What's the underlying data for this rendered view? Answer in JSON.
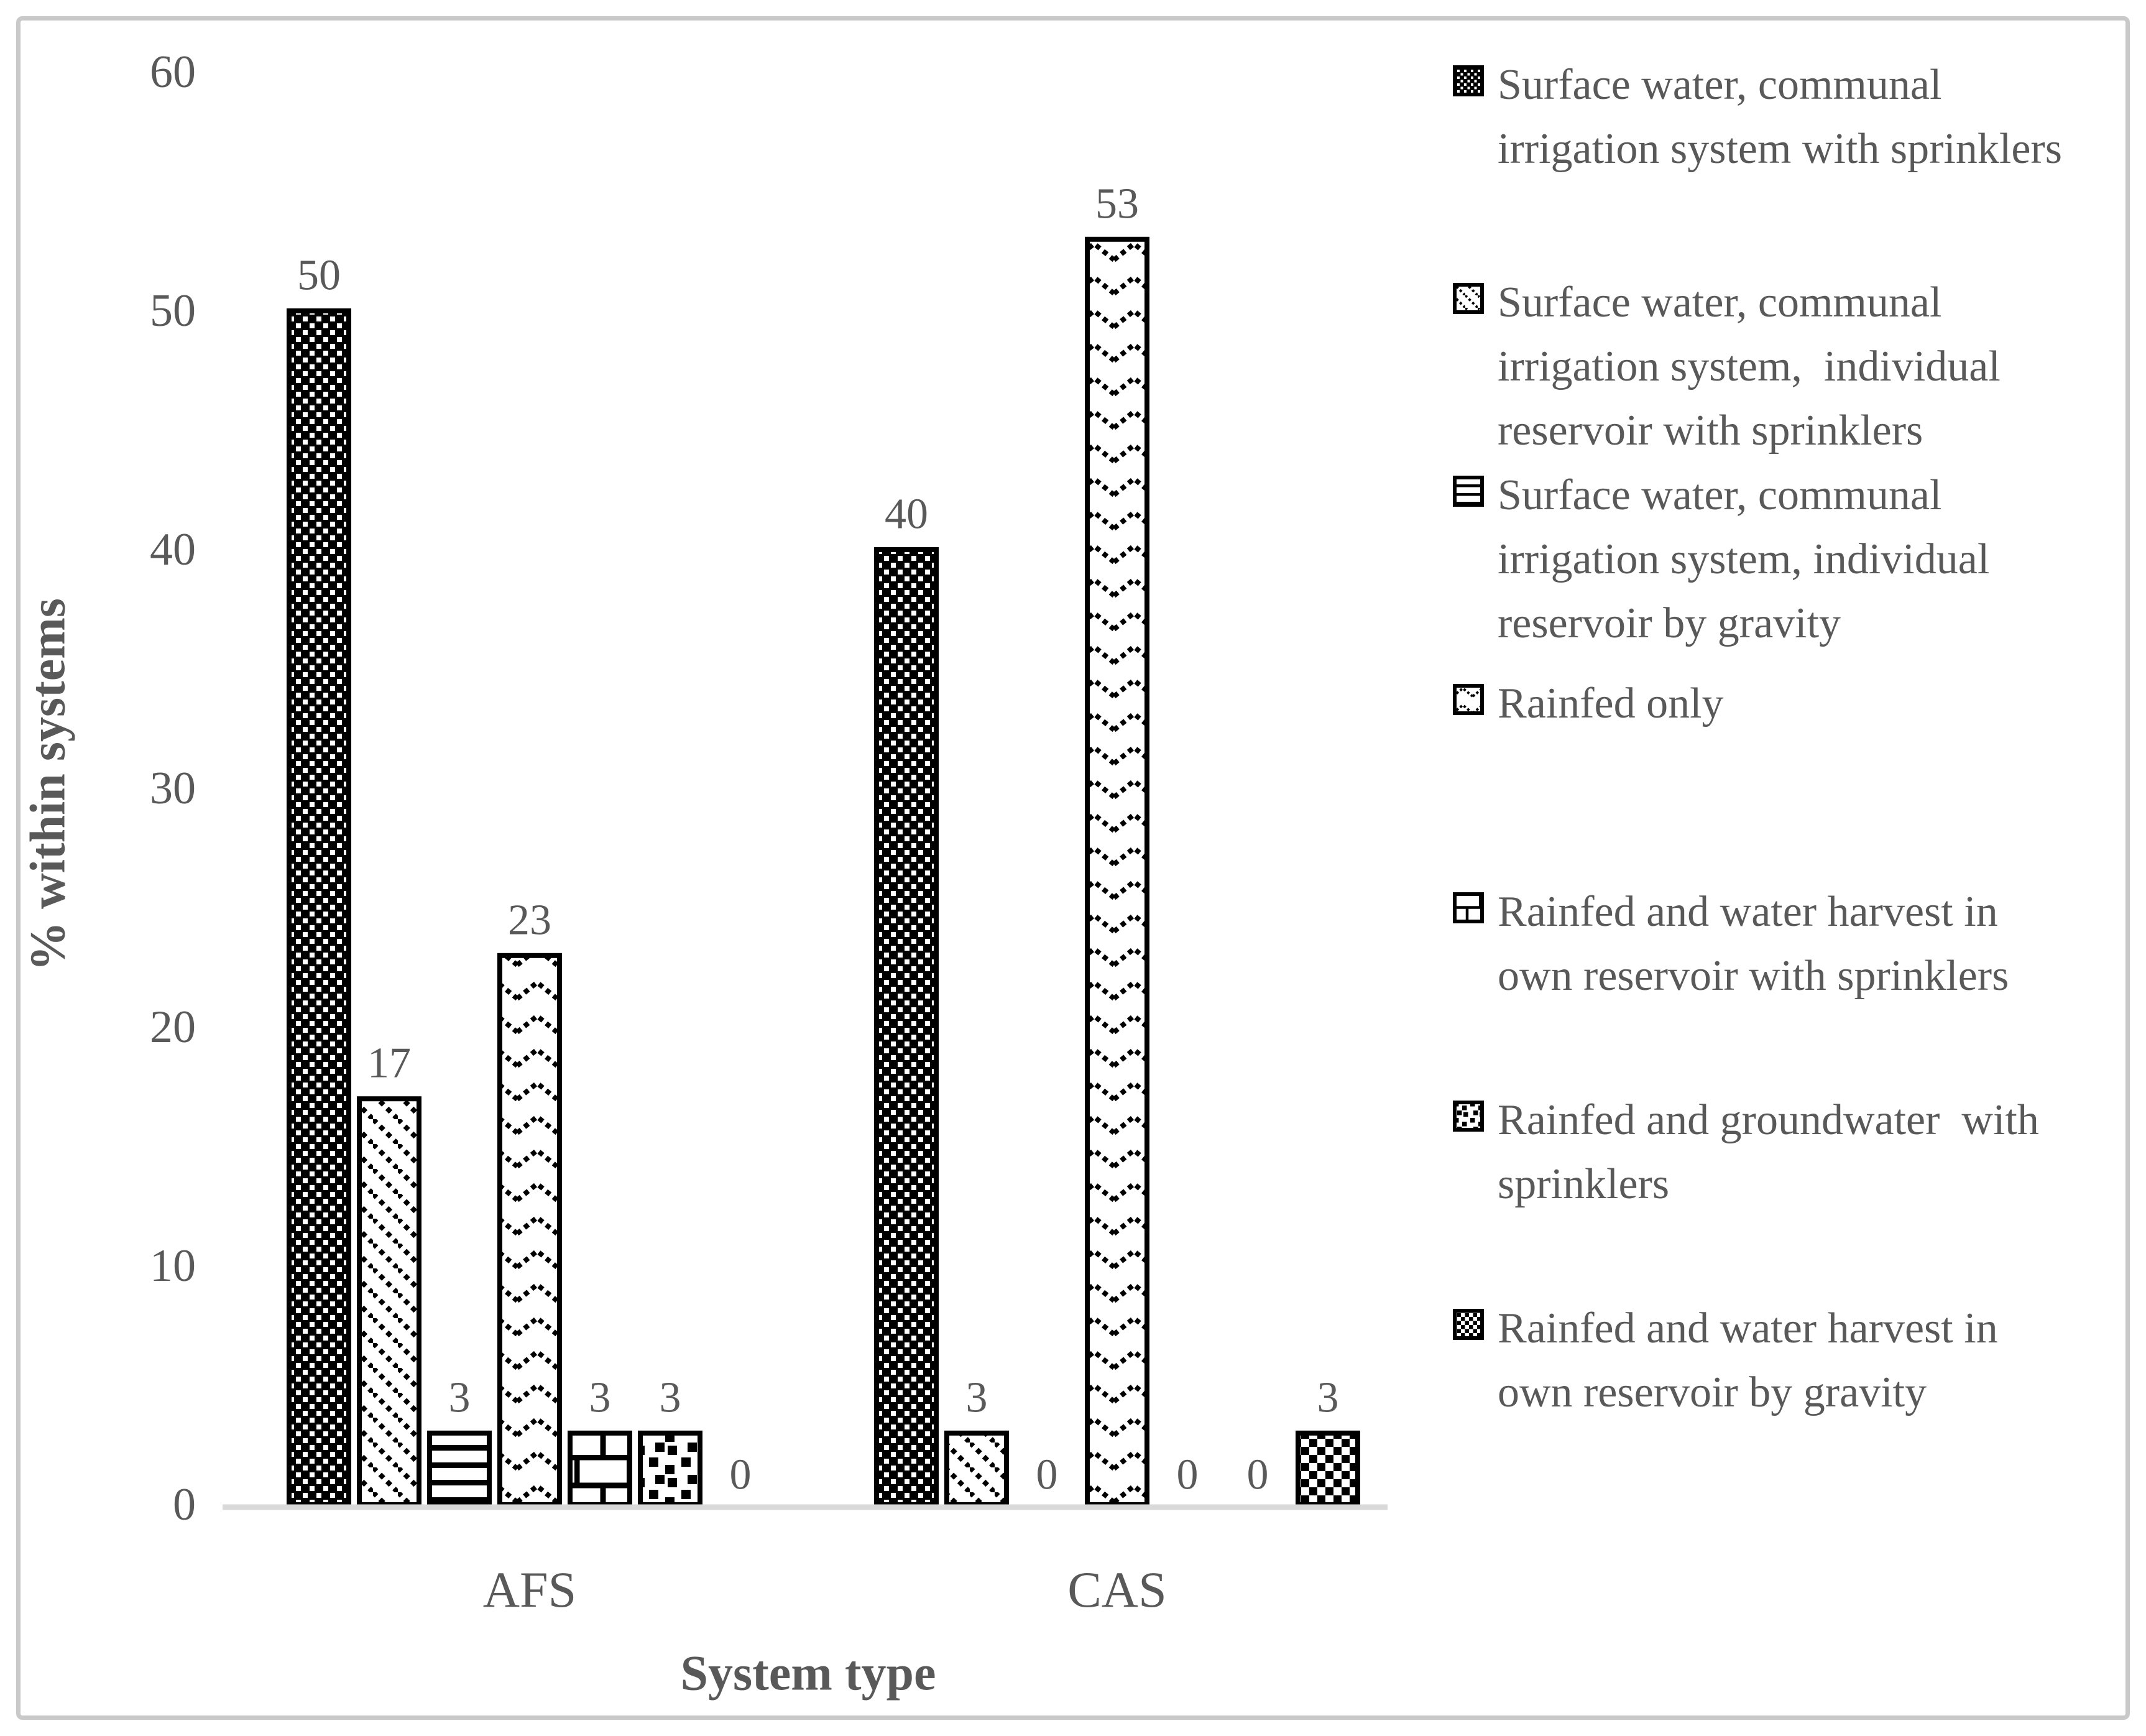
{
  "figure": {
    "text_color": "#595959",
    "axis_line_color": "#d9d9d9",
    "pattern_color": "#000000",
    "border_color": "#c9c9c9",
    "background": "#ffffff"
  },
  "chart_data": {
    "type": "bar",
    "title": "",
    "xlabel": "System type",
    "ylabel": "% within systems",
    "ylim": [
      0,
      60
    ],
    "yticks": [
      0,
      10,
      20,
      30,
      40,
      50,
      60
    ],
    "grid": false,
    "legend_position": "right",
    "data_labels": true,
    "categories": [
      "AFS",
      "CAS"
    ],
    "series": [
      {
        "name": "Surface water, communal irrigation system with sprinklers",
        "pattern": "dense-white-dots-on-black",
        "values": [
          50,
          40
        ],
        "legend_lines": [
          "Surface water, communal",
          "irrigation system with sprinklers"
        ]
      },
      {
        "name": "Surface water, communal irrigation system,  individual reservoir with sprinklers",
        "pattern": "dotted-diagonal-stripes",
        "values": [
          17,
          3
        ],
        "legend_lines": [
          "Surface water, communal",
          "irrigation system,  individual",
          "reservoir with sprinklers"
        ]
      },
      {
        "name": "Surface water, communal irrigation system, individual reservoir by gravity",
        "pattern": "horizontal-stripes",
        "values": [
          3,
          0
        ],
        "legend_lines": [
          "Surface water, communal",
          "irrigation system, individual",
          "reservoir by gravity"
        ]
      },
      {
        "name": "Rainfed only",
        "pattern": "zigzag-chevrons",
        "values": [
          23,
          53
        ],
        "legend_lines": [
          "Rainfed only"
        ]
      },
      {
        "name": "Rainfed and water harvest in own reservoir with sprinklers",
        "pattern": "brick",
        "values": [
          3,
          0
        ],
        "legend_lines": [
          "Rainfed and water harvest in",
          "own reservoir with sprinklers"
        ]
      },
      {
        "name": "Rainfed and groundwater  with sprinklers",
        "pattern": "scattered-squares",
        "values": [
          3,
          0
        ],
        "legend_lines": [
          "Rainfed and groundwater  with",
          "sprinklers"
        ]
      },
      {
        "name": "Rainfed and water harvest in own reservoir by gravity",
        "pattern": "checkerboard",
        "values": [
          0,
          3
        ],
        "legend_lines": [
          "Rainfed and water harvest in",
          "own reservoir by gravity"
        ]
      }
    ]
  }
}
